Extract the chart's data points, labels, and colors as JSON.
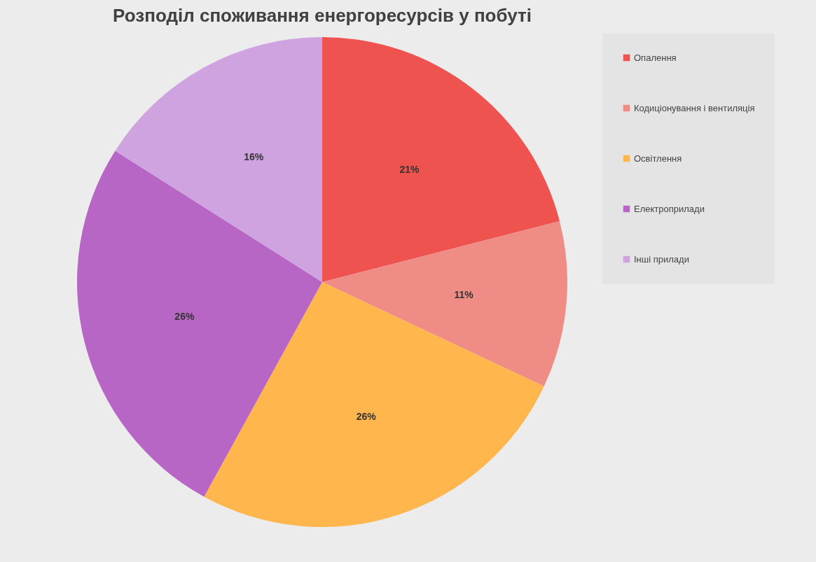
{
  "chart_data": {
    "type": "pie",
    "title": "Розподіл споживання енергоресурсів у побуті",
    "categories": [
      "Опалення",
      "Кодиціонування і вентиляція",
      "Освітлення",
      "Електроприлади",
      "Інші прилади"
    ],
    "values": [
      21,
      11,
      26,
      26,
      16
    ],
    "colors": [
      "#ef5350",
      "#f08c86",
      "#ffb74d",
      "#b866c6",
      "#cfa2e0"
    ],
    "value_labels": [
      "21%",
      "11%",
      "26%",
      "26%",
      "16%"
    ],
    "legend": "right"
  }
}
